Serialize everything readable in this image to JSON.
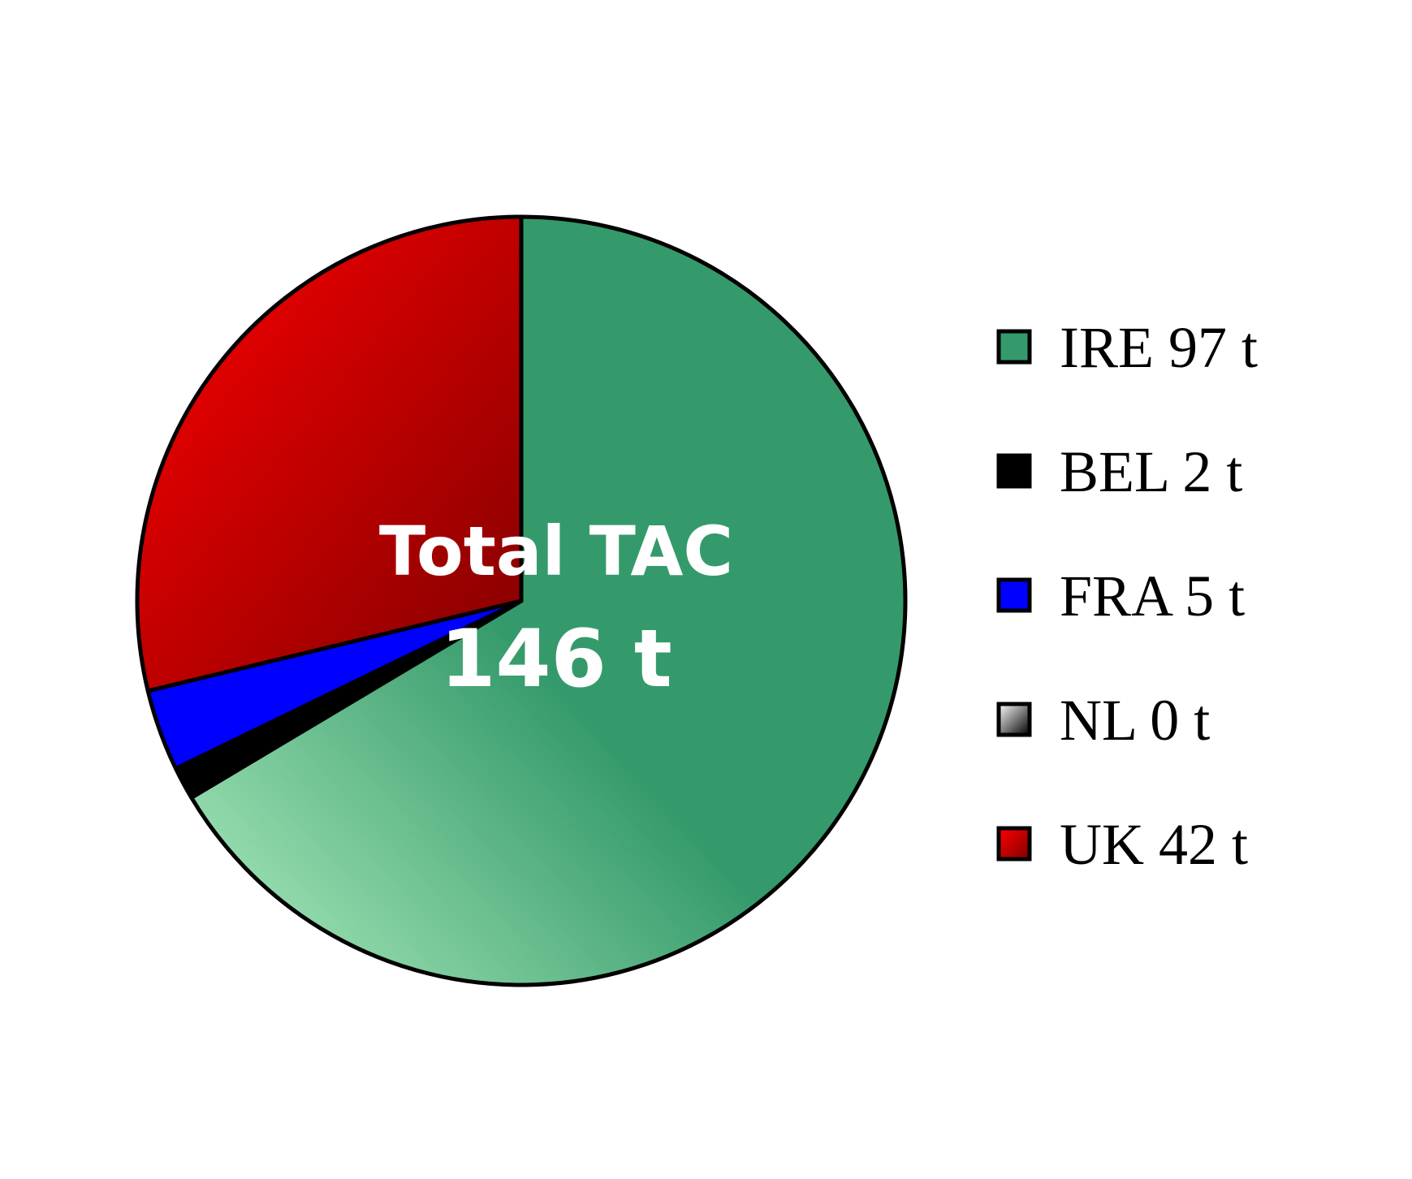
{
  "chart_data": {
    "type": "pie",
    "title": "",
    "center_label": {
      "line1": "Total TAC",
      "line2": "146 t"
    },
    "slices": [
      {
        "name": "IRE",
        "value": 97,
        "label": "IRE 97 t",
        "color": "#359a6b",
        "color_light": "#9fe0ae"
      },
      {
        "name": "NL",
        "value": 0,
        "label": "NL 0 t",
        "color": "#ffffff",
        "color_light": "#ffffff"
      },
      {
        "name": "BEL",
        "value": 2,
        "label": "BEL 2 t",
        "color": "#000000",
        "color_light": "#000000"
      },
      {
        "name": "FRA",
        "value": 5,
        "label": "FRA 5 t",
        "color": "#0000ff",
        "color_light": "#0000ff"
      },
      {
        "name": "UK",
        "value": 42,
        "label": "UK 42 t",
        "color": "#8b0000",
        "color_light": "#ff0000"
      }
    ],
    "legend_order": [
      "IRE",
      "BEL",
      "FRA",
      "NL",
      "UK"
    ],
    "legend_position": "right",
    "start_angle": "12 o'clock",
    "direction": "clockwise"
  }
}
